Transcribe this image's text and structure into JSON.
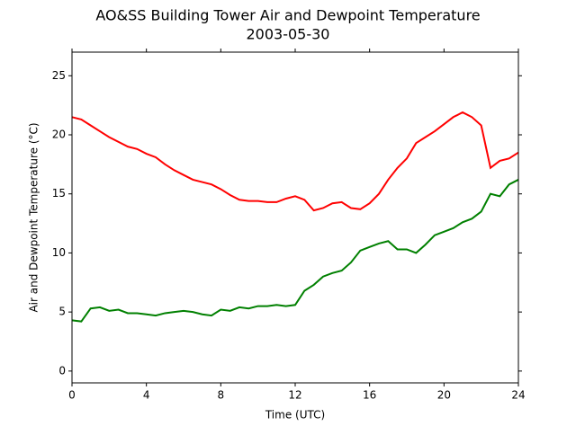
{
  "chart_data": {
    "type": "line",
    "title": "AO&SS Building Tower Air and Dewpoint Temperature",
    "subtitle": "2003-05-30",
    "xlabel": "Time (UTC)",
    "ylabel": "Air and Dewpoint Temperature (°C)",
    "x": [
      0,
      0.5,
      1,
      1.5,
      2,
      2.5,
      3,
      3.5,
      4,
      4.5,
      5,
      5.5,
      6,
      6.5,
      7,
      7.5,
      8,
      8.5,
      9,
      9.5,
      10,
      10.5,
      11,
      11.5,
      12,
      12.5,
      13,
      13.5,
      14,
      14.5,
      15,
      15.5,
      16,
      16.5,
      17,
      17.5,
      18,
      18.5,
      19,
      19.5,
      20,
      20.5,
      21,
      21.5,
      22,
      22.5,
      23,
      23.5,
      24
    ],
    "series": [
      {
        "color": "#ff0000",
        "values": [
          21.5,
          21.3,
          20.8,
          20.3,
          19.8,
          19.4,
          19.0,
          18.8,
          18.4,
          18.1,
          17.5,
          17.0,
          16.6,
          16.2,
          16.0,
          15.8,
          15.4,
          14.9,
          14.5,
          14.4,
          14.4,
          14.3,
          14.3,
          14.6,
          14.8,
          14.5,
          13.6,
          13.8,
          14.2,
          14.3,
          13.8,
          13.7,
          14.2,
          15.0,
          16.2,
          17.2,
          18.0,
          19.3,
          19.8,
          20.3,
          20.9,
          21.5,
          21.9,
          21.5,
          20.8,
          17.2,
          17.8,
          18.0,
          18.5
        ]
      },
      {
        "color": "#008000",
        "values": [
          4.3,
          4.2,
          5.3,
          5.4,
          5.1,
          5.2,
          4.9,
          4.9,
          4.8,
          4.7,
          4.9,
          5.0,
          5.1,
          5.0,
          4.8,
          4.7,
          5.2,
          5.1,
          5.4,
          5.3,
          5.5,
          5.5,
          5.6,
          5.5,
          5.6,
          6.8,
          7.3,
          8.0,
          8.3,
          8.5,
          9.2,
          10.2,
          10.5,
          10.8,
          11.0,
          10.3,
          10.3,
          10.0,
          10.7,
          11.5,
          11.8,
          12.1,
          12.6,
          12.9,
          13.5,
          15.0,
          14.8,
          15.8,
          16.2
        ]
      }
    ],
    "xlim": [
      0,
      24
    ],
    "xticks": [
      0,
      4,
      8,
      12,
      16,
      20,
      24
    ],
    "ylim": [
      -1,
      27
    ],
    "yticks": [
      0,
      5,
      10,
      15,
      20,
      25
    ]
  }
}
